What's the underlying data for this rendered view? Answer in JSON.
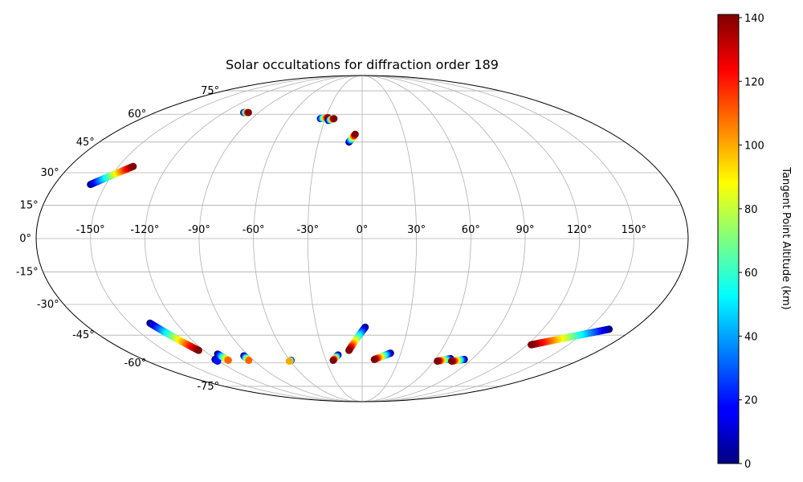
{
  "chart_data": {
    "type": "scatter",
    "projection": "mollweide",
    "title": "Solar occultations for diffraction order 189",
    "xlabel": "",
    "ylabel": "",
    "xlim": [
      -180,
      180
    ],
    "ylim": [
      -90,
      90
    ],
    "grid": true,
    "lon_ticks": [
      -150,
      -120,
      -90,
      -60,
      -30,
      0,
      30,
      60,
      90,
      120,
      150
    ],
    "lon_tick_labels": [
      "-150°",
      "-120°",
      "-90°",
      "-60°",
      "-30°",
      "0°",
      "30°",
      "60°",
      "90°",
      "120°",
      "150°"
    ],
    "lat_ticks": [
      -75,
      -60,
      -45,
      -30,
      -15,
      0,
      15,
      30,
      45,
      60,
      75
    ],
    "lat_tick_labels": [
      "-75°",
      "-60°",
      "-45°",
      "-30°",
      "-15°",
      "0°",
      "15°",
      "30°",
      "45°",
      "60°",
      "75°"
    ],
    "colormap": "jet",
    "colorbar": {
      "label": "Tangent Point Altitude (km)",
      "range": [
        0,
        141
      ],
      "ticks": [
        0,
        20,
        40,
        60,
        80,
        100,
        120,
        140
      ],
      "tick_labels": [
        "0",
        "20",
        "40",
        "60",
        "80",
        "100",
        "120",
        "140"
      ],
      "placement": "right"
    },
    "tracks": [
      {
        "start": {
          "lon": -159,
          "lat": 24.5,
          "alt": 0
        },
        "end": {
          "lon": -141,
          "lat": 33,
          "alt": 141
        }
      },
      {
        "start": {
          "lon": -103,
          "lat": 61,
          "alt": 0
        },
        "end": {
          "lon": -99,
          "lat": 61,
          "alt": 141
        }
      },
      {
        "start": {
          "lon": -34,
          "lat": 57.5,
          "alt": 10
        },
        "end": {
          "lon": -28,
          "lat": 58,
          "alt": 141
        }
      },
      {
        "start": {
          "lon": -27,
          "lat": 56.5,
          "alt": 0
        },
        "end": {
          "lon": -23,
          "lat": 57.5,
          "alt": 141
        }
      },
      {
        "start": {
          "lon": -9,
          "lat": 45,
          "alt": 0
        },
        "end": {
          "lon": -5,
          "lat": 49,
          "alt": 141
        }
      },
      {
        "start": {
          "lon": -137,
          "lat": -39,
          "alt": 0
        },
        "end": {
          "lon": -124,
          "lat": -53,
          "alt": 141
        }
      },
      {
        "start": {
          "lon": -121,
          "lat": -58,
          "alt": 0
        },
        "end": {
          "lon": -121,
          "lat": -59,
          "alt": 20
        }
      },
      {
        "start": {
          "lon": -113,
          "lat": -55,
          "alt": 0
        },
        "end": {
          "lon": -111,
          "lat": -58.5,
          "alt": 110
        }
      },
      {
        "start": {
          "lon": -94,
          "lat": -56,
          "alt": 0
        },
        "end": {
          "lon": -94,
          "lat": -58.5,
          "alt": 110
        }
      },
      {
        "start": {
          "lon": -59,
          "lat": -58.5,
          "alt": 0
        },
        "end": {
          "lon": -61,
          "lat": -59,
          "alt": 100
        }
      },
      {
        "start": {
          "lon": -19,
          "lat": -55.5,
          "alt": 0
        },
        "end": {
          "lon": -24,
          "lat": -58.5,
          "alt": 141
        }
      },
      {
        "start": {
          "lon": 2,
          "lat": -41,
          "alt": 0
        },
        "end": {
          "lon": -10,
          "lat": -53,
          "alt": 141
        }
      },
      {
        "start": {
          "lon": 22,
          "lat": -54.5,
          "alt": 0
        },
        "end": {
          "lon": 10,
          "lat": -58,
          "alt": 141
        }
      },
      {
        "start": {
          "lon": 72,
          "lat": -57.5,
          "alt": 0
        },
        "end": {
          "lon": 63,
          "lat": -59,
          "alt": 141
        }
      },
      {
        "start": {
          "lon": 84,
          "lat": -58,
          "alt": 0
        },
        "end": {
          "lon": 75,
          "lat": -59,
          "alt": 141
        }
      },
      {
        "start": {
          "lon": 164,
          "lat": -42,
          "alt": 0
        },
        "end": {
          "lon": 123,
          "lat": -50,
          "alt": 141
        }
      }
    ]
  }
}
